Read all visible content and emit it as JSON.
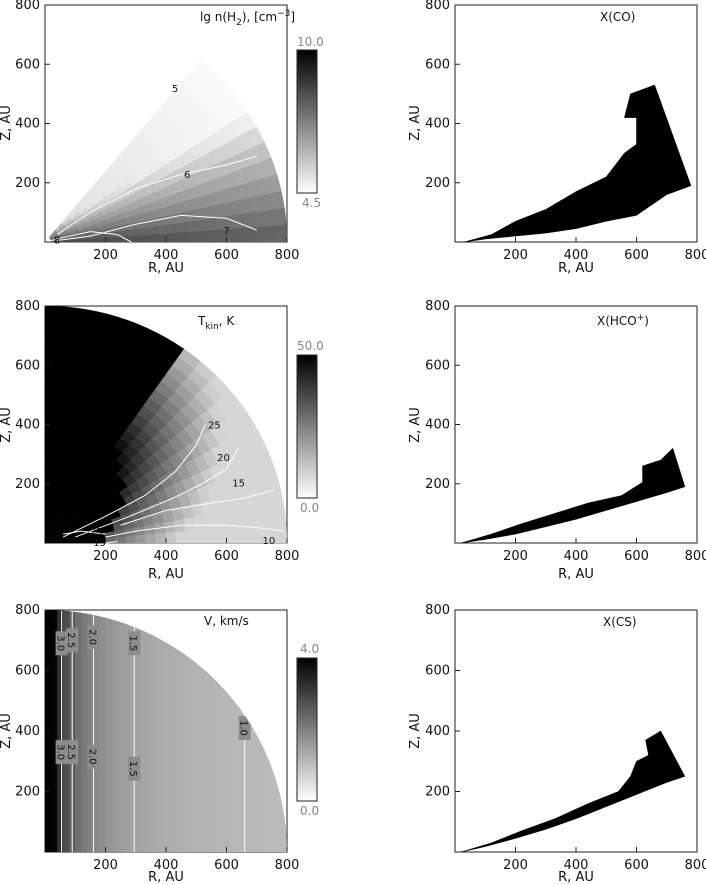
{
  "chart_data": [
    {
      "type": "heatmap",
      "panel": "lg n(H2)",
      "title": "lg n(H",
      "title_sub": "2",
      "title_tail": "), [cm",
      "title_sup": "−3",
      "title_end": "]",
      "xlabel": "R, AU",
      "ylabel": "Z, AU",
      "xlim": [
        0,
        800
      ],
      "ylim": [
        0,
        800
      ],
      "xticks": [
        200,
        400,
        600,
        800
      ],
      "yticks": [
        200,
        400,
        600,
        800
      ],
      "colorbar": {
        "min_label": "4.5",
        "max_label": "10.0",
        "min": 4.5,
        "max": 10.0
      },
      "domain": {
        "shape": "wedge",
        "max_radius": 800,
        "angle_deg": [
          0,
          50
        ]
      },
      "contours": [
        {
          "label": "5",
          "level": 5,
          "points": [
            [
              495,
              600
            ],
            [
              420,
              520
            ],
            [
              300,
              425
            ],
            [
              150,
              300
            ],
            [
              40,
              200
            ]
          ],
          "label_at": [
            430,
            520
          ]
        },
        {
          "label": "6",
          "level": 6,
          "points": [
            [
              700,
              290
            ],
            [
              600,
              260
            ],
            [
              450,
              228
            ],
            [
              300,
              180
            ],
            [
              150,
              100
            ],
            [
              40,
              25
            ]
          ],
          "label_at": [
            470,
            230
          ]
        },
        {
          "label": "7",
          "level": 7,
          "points": [
            [
              700,
              40
            ],
            [
              600,
              80
            ],
            [
              450,
              90
            ],
            [
              300,
              60
            ],
            [
              150,
              20
            ],
            [
              40,
              5
            ]
          ],
          "label_at": [
            600,
            40
          ]
        },
        {
          "label": "8",
          "level": 8,
          "points": [
            [
              285,
              0
            ],
            [
              240,
              25
            ],
            [
              150,
              35
            ],
            [
              60,
              15
            ],
            [
              15,
              3
            ]
          ],
          "label_at": [
            40,
            8
          ]
        }
      ],
      "rows": [
        {
          "r": 0,
          "values": [
            8.6,
            8.6,
            8.6,
            8.6,
            8.6,
            8.6,
            8.6,
            8.6,
            8.6,
            8.6,
            8.6,
            8.6
          ]
        },
        {
          "r": 1,
          "values": [
            7.8,
            7.2,
            6.7,
            6.3,
            6.0,
            5.8,
            5.6,
            5.4,
            5.3,
            5.2,
            5.1,
            5.0
          ]
        }
      ]
    },
    {
      "type": "heatmap",
      "panel": "X(CO)",
      "title": "X(CO)",
      "xlabel": "R, AU",
      "ylabel": "Z, AU",
      "xlim": [
        0,
        800
      ],
      "ylim": [
        0,
        800
      ],
      "xticks": [
        200,
        400,
        600,
        800
      ],
      "yticks": [
        200,
        400,
        600,
        800
      ],
      "region": [
        [
          30,
          0
        ],
        [
          120,
          25
        ],
        [
          200,
          70
        ],
        [
          300,
          110
        ],
        [
          400,
          170
        ],
        [
          500,
          220
        ],
        [
          560,
          300
        ],
        [
          600,
          330
        ],
        [
          600,
          420
        ],
        [
          560,
          420
        ],
        [
          580,
          500
        ],
        [
          660,
          530
        ],
        [
          780,
          190
        ],
        [
          700,
          160
        ],
        [
          600,
          90
        ],
        [
          500,
          70
        ],
        [
          400,
          45
        ],
        [
          300,
          30
        ],
        [
          200,
          20
        ],
        [
          100,
          10
        ]
      ]
    },
    {
      "type": "heatmap",
      "panel": "T_kin",
      "title": "T",
      "title_sub": "kin",
      "title_end": ", K",
      "xlabel": "R, AU",
      "ylabel": "Z, AU",
      "xlim": [
        0,
        800
      ],
      "ylim": [
        0,
        800
      ],
      "xticks": [
        200,
        400,
        600,
        800
      ],
      "yticks": [
        200,
        400,
        600,
        800
      ],
      "colorbar": {
        "min_label": "0.0",
        "max_label": "50.0",
        "min": 0.0,
        "max": 50.0
      },
      "domain": {
        "shape": "quarter-circle",
        "max_radius": 800
      },
      "contours": [
        {
          "label": "25",
          "level": 25,
          "points": [
            [
              530,
              400
            ],
            [
              500,
              330
            ],
            [
              430,
              240
            ],
            [
              330,
              160
            ],
            [
              200,
              90
            ],
            [
              60,
              20
            ]
          ],
          "label_at": [
            560,
            400
          ]
        },
        {
          "label": "20",
          "level": 20,
          "points": [
            [
              640,
              320
            ],
            [
              600,
              250
            ],
            [
              520,
              200
            ],
            [
              420,
              150
            ],
            [
              280,
              90
            ],
            [
              100,
              20
            ]
          ],
          "label_at": [
            590,
            290
          ]
        },
        {
          "label": "15",
          "level": 15,
          "points": [
            [
              760,
              180
            ],
            [
              650,
              150
            ],
            [
              520,
              130
            ],
            [
              400,
              110
            ],
            [
              250,
              60
            ]
          ],
          "label_at": [
            640,
            205
          ]
        },
        {
          "label": "10",
          "level": 10,
          "points": [
            [
              790,
              40
            ],
            [
              720,
              50
            ],
            [
              600,
              60
            ],
            [
              450,
              60
            ],
            [
              300,
              40
            ],
            [
              200,
              20
            ]
          ],
          "label_at": [
            740,
            10
          ]
        },
        {
          "label": "25",
          "level": 25,
          "points": [
            [
              60,
              30
            ],
            [
              120,
              40
            ],
            [
              200,
              30
            ]
          ],
          "label_at": [
            170,
            40
          ]
        },
        {
          "label": "15",
          "level": 15,
          "points": [
            [
              200,
              0
            ],
            [
              240,
              5
            ]
          ],
          "label_at": [
            180,
            4
          ]
        }
      ]
    },
    {
      "type": "heatmap",
      "panel": "X(HCO+)",
      "title": "X(HCO",
      "title_sup": "+",
      "title_end": ")",
      "xlabel": "R, AU",
      "ylabel": "Z, AU",
      "xlim": [
        0,
        800
      ],
      "ylim": [
        0,
        800
      ],
      "xticks": [
        200,
        400,
        600,
        800
      ],
      "yticks": [
        200,
        400,
        600,
        800
      ],
      "region": [
        [
          20,
          0
        ],
        [
          120,
          30
        ],
        [
          220,
          65
        ],
        [
          330,
          100
        ],
        [
          440,
          135
        ],
        [
          550,
          160
        ],
        [
          620,
          205
        ],
        [
          620,
          260
        ],
        [
          680,
          280
        ],
        [
          720,
          320
        ],
        [
          760,
          190
        ],
        [
          700,
          170
        ],
        [
          600,
          140
        ],
        [
          500,
          110
        ],
        [
          400,
          80
        ],
        [
          300,
          55
        ],
        [
          200,
          30
        ],
        [
          100,
          12
        ]
      ]
    },
    {
      "type": "heatmap",
      "panel": "V",
      "title": "V, km/s",
      "xlabel": "R, AU",
      "ylabel": "Z, AU",
      "xlim": [
        0,
        800
      ],
      "ylim": [
        0,
        800
      ],
      "xticks": [
        200,
        400,
        600,
        800
      ],
      "yticks": [
        200,
        400,
        600,
        800
      ],
      "colorbar": {
        "min_label": "0.0",
        "max_label": "4.0",
        "min": 0.0,
        "max": 4.0
      },
      "domain": {
        "shape": "quarter-circle",
        "max_radius": 800
      },
      "contours": [
        {
          "label": "3.0",
          "level": 3.0,
          "x": 55,
          "label_tops": [
            690
          ],
          "label_bottoms": [
            330
          ]
        },
        {
          "label": "2.5",
          "level": 2.5,
          "x": 90,
          "label_tops": [
            700
          ],
          "label_bottoms": [
            330
          ]
        },
        {
          "label": "2.0",
          "level": 2.0,
          "x": 160,
          "label_tops": [
            710
          ],
          "label_bottoms": [
            315
          ]
        },
        {
          "label": "1.5",
          "level": 1.5,
          "x": 295,
          "label_tops": [
            690
          ],
          "label_bottoms": [
            275
          ]
        },
        {
          "label": "1.0",
          "level": 1.0,
          "x": 660,
          "label_tops": [
            410
          ],
          "label_bottoms": []
        }
      ]
    },
    {
      "type": "heatmap",
      "panel": "X(CS)",
      "title": "X(CS)",
      "xlabel": "R, AU",
      "ylabel": "Z, AU",
      "xlim": [
        0,
        800
      ],
      "ylim": [
        0,
        800
      ],
      "xticks": [
        200,
        400,
        600,
        800
      ],
      "yticks": [
        200,
        400,
        600,
        800
      ],
      "region": [
        [
          20,
          0
        ],
        [
          120,
          30
        ],
        [
          220,
          70
        ],
        [
          330,
          110
        ],
        [
          440,
          160
        ],
        [
          540,
          200
        ],
        [
          580,
          250
        ],
        [
          600,
          300
        ],
        [
          640,
          320
        ],
        [
          630,
          370
        ],
        [
          680,
          400
        ],
        [
          760,
          250
        ],
        [
          700,
          230
        ],
        [
          600,
          190
        ],
        [
          500,
          150
        ],
        [
          400,
          110
        ],
        [
          300,
          75
        ],
        [
          200,
          45
        ],
        [
          100,
          18
        ]
      ]
    }
  ]
}
